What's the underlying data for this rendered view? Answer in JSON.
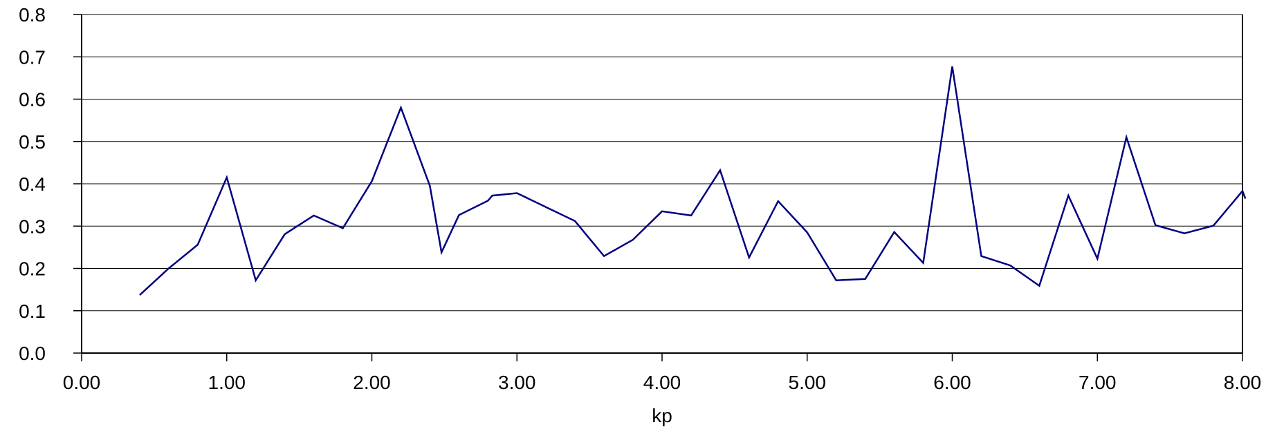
{
  "chart_data": {
    "type": "line",
    "title": "",
    "xlabel": "kp",
    "ylabel": "",
    "xlim": [
      0,
      8
    ],
    "ylim": [
      0,
      0.8
    ],
    "x_ticks": [
      "0.00",
      "1.00",
      "2.00",
      "3.00",
      "4.00",
      "5.00",
      "6.00",
      "7.00",
      "8.00"
    ],
    "y_ticks": [
      "0.0",
      "0.1",
      "0.2",
      "0.3",
      "0.4",
      "0.5",
      "0.6",
      "0.7",
      "0.8"
    ],
    "grid": true,
    "line_color": "#000080",
    "series": [
      {
        "x": [
          0.4,
          0.6,
          0.8,
          1.0,
          1.2,
          1.4,
          1.6,
          1.8,
          2.0,
          2.2,
          2.4,
          2.48,
          2.6,
          2.8,
          2.83,
          3.0,
          3.2,
          3.4,
          3.6,
          3.8,
          4.0,
          4.2,
          4.4,
          4.6,
          4.8,
          5.0,
          5.2,
          5.4,
          5.6,
          5.8,
          6.0,
          6.2,
          6.4,
          6.6,
          6.8,
          7.0,
          7.2,
          7.4,
          7.6,
          7.8,
          8.0,
          8.02
        ],
        "values": [
          0.137,
          0.2,
          0.256,
          0.415,
          0.172,
          0.281,
          0.325,
          0.295,
          0.406,
          0.58,
          0.395,
          0.238,
          0.326,
          0.36,
          0.372,
          0.378,
          0.345,
          0.312,
          0.229,
          0.268,
          0.335,
          0.325,
          0.432,
          0.226,
          0.359,
          0.285,
          0.172,
          0.175,
          0.286,
          0.213,
          0.677,
          0.229,
          0.207,
          0.159,
          0.372,
          0.223,
          0.51,
          0.302,
          0.283,
          0.301,
          0.383,
          0.365
        ]
      }
    ]
  }
}
